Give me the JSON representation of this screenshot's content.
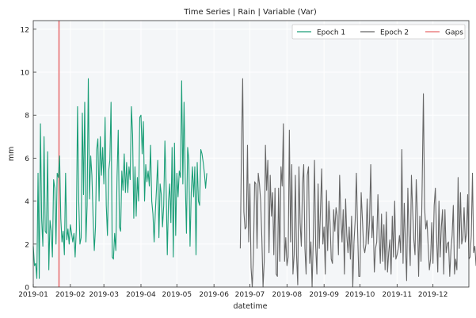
{
  "chart_data": {
    "type": "line",
    "title": "Time Series | Rain | Variable (Var)",
    "xlabel": "datetime",
    "ylabel": "mm",
    "xlim": [
      "2019-01-01",
      "2019-12-31"
    ],
    "ylim": [
      0,
      12.4
    ],
    "yticks": [
      0,
      2,
      4,
      6,
      8,
      10,
      12
    ],
    "xticks": [
      "2019-01",
      "2019-02",
      "2019-03",
      "2019-04",
      "2019-05",
      "2019-06",
      "2019-07",
      "2019-08",
      "2019-09",
      "2019-10",
      "2019-11",
      "2019-12"
    ],
    "grid": true,
    "legend_position": "top-right",
    "colors": {
      "epoch1": "#1a9e77",
      "epoch2": "#666666",
      "gaps": "#e8696b",
      "plot_bg": "#f4f6f8",
      "grid": "#ffffff"
    },
    "legend": [
      {
        "label": "Epoch 1",
        "color": "#1a9e77"
      },
      {
        "label": "Epoch 2",
        "color": "#666666"
      },
      {
        "label": "Gaps",
        "color": "#e8696b"
      }
    ],
    "gaps": [
      {
        "start": "2019-01-22",
        "end": "2019-01-23"
      }
    ],
    "series": [
      {
        "name": "Epoch 1",
        "start": "2019-01-01",
        "step_days": 1,
        "values": [
          1.9,
          1.0,
          1.1,
          0.4,
          5.3,
          0.4,
          7.6,
          3.2,
          1.9,
          7.0,
          2.6,
          2.5,
          6.3,
          0.8,
          3.1,
          2.6,
          1.4,
          5.0,
          4.6,
          2.0,
          5.3,
          5.1,
          6.1,
          3.2,
          2.1,
          2.6,
          1.5,
          5.3,
          2.2,
          2.7,
          2.0,
          2.9,
          2.5,
          2.1,
          2.5,
          1.4,
          2.7,
          8.4,
          4.0,
          2.0,
          2.3,
          8.1,
          4.3,
          8.6,
          2.1,
          3.8,
          9.7,
          4.1,
          6.1,
          5.2,
          3.2,
          1.7,
          2.8,
          6.4,
          6.9,
          4.0,
          7.0,
          5.2,
          6.5,
          4.8,
          7.9,
          3.8,
          2.4,
          5.4,
          5.9,
          8.6,
          1.4,
          1.3,
          2.5,
          1.7,
          5.1,
          7.3,
          2.8,
          2.6,
          5.4,
          4.5,
          6.2,
          4.4,
          5.8,
          4.4,
          5.6,
          5.0,
          8.4,
          7.1,
          3.2,
          5.6,
          3.3,
          5.1,
          4.0,
          7.9,
          8.0,
          6.2,
          7.7,
          4.0,
          5.7,
          4.9,
          5.4,
          4.7,
          6.6,
          4.0,
          3.4,
          2.1,
          3.5,
          4.6,
          5.9,
          2.3,
          4.8,
          4.3,
          2.8,
          3.8,
          6.8,
          4.7,
          1.5,
          4.0,
          4.8,
          3.0,
          6.5,
          1.4,
          6.7,
          2.4,
          5.3,
          4.2,
          5.4,
          5.1,
          9.6,
          4.8,
          8.6,
          5.0,
          2.5,
          6.5,
          5.9,
          1.9,
          4.4,
          5.6,
          4.2,
          5.6,
          1.5,
          5.8,
          4.0,
          3.8,
          6.4,
          6.2,
          5.8,
          5.3,
          4.6,
          5.3
        ]
      },
      {
        "name": "Epoch 2",
        "start": "2019-06-23",
        "step_days": 1,
        "values": [
          1.8,
          6.5,
          9.7,
          3.5,
          2.7,
          2.8,
          6.6,
          2.1,
          4.8,
          0.9,
          0.0,
          1.5,
          4.9,
          4.8,
          1.8,
          5.3,
          4.8,
          4.0,
          2.3,
          0.0,
          1.2,
          6.6,
          4.5,
          5.9,
          1.6,
          5.2,
          3.3,
          4.4,
          1.5,
          4.6,
          0.6,
          0.5,
          4.6,
          1.2,
          5.6,
          4.7,
          7.6,
          1.2,
          2.3,
          1.0,
          1.4,
          7.3,
          2.1,
          5.7,
          0.6,
          1.5,
          5.2,
          1.5,
          0.1,
          5.6,
          3.0,
          1.9,
          4.8,
          5.7,
          1.8,
          0.6,
          5.2,
          5.6,
          1.1,
          2.1,
          0.0,
          2.3,
          5.9,
          1.9,
          0.6,
          4.8,
          1.8,
          3.6,
          5.5,
          2.0,
          2.8,
          0.6,
          4.5,
          1.7,
          4.0,
          3.0,
          1.3,
          1.1,
          3.6,
          2.6,
          3.7,
          3.3,
          1.5,
          5.2,
          3.3,
          2.1,
          3.6,
          0.6,
          4.1,
          2.4,
          1.6,
          2.8,
          1.3,
          3.3,
          0.0,
          2.1,
          3.1,
          5.3,
          2.7,
          0.5,
          0.5,
          4.4,
          3.2,
          1.9,
          1.6,
          2.0,
          4.1,
          2.0,
          3.1,
          5.7,
          2.3,
          3.3,
          0.7,
          1.8,
          2.1,
          4.3,
          2.5,
          1.1,
          3.4,
          1.2,
          2.9,
          0.8,
          3.5,
          0.7,
          1.6,
          2.2,
          0.6,
          3.3,
          1.4,
          4.0,
          1.3,
          1.5,
          1.8,
          2.4,
          1.6,
          6.4,
          1.1,
          3.9,
          2.0,
          0.3,
          4.6,
          2.4,
          1.0,
          5.2,
          3.6,
          2.2,
          1.5,
          5.0,
          3.4,
          0.5,
          3.3,
          1.2,
          4.9,
          9.0,
          3.7,
          2.7,
          3.1,
          1.9,
          0.8,
          1.3,
          3.0,
          1.1,
          3.8,
          4.6,
          2.4,
          0.7,
          4.0,
          1.4,
          2.8,
          3.6,
          0.6,
          3.6,
          1.6,
          2.0,
          2.1,
          0.5,
          1.7,
          2.4,
          3.8,
          0.6,
          1.3,
          0.8,
          5.1,
          1.8,
          4.4,
          2.0,
          2.3,
          3.7,
          2.1,
          2.5,
          4.3,
          1.3,
          1.4,
          2.4,
          5.3,
          1.6,
          1.9,
          1.0,
          2.1,
          2.6,
          2.4,
          5.7,
          3.5,
          2.8,
          1.1,
          3.2,
          0.9,
          2.0,
          1.2,
          1.4,
          5.2,
          2.4
        ]
      }
    ]
  }
}
